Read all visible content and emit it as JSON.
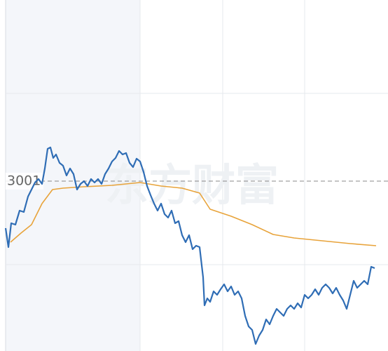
{
  "watermark": "东方财富",
  "chart_data": {
    "type": "line",
    "xlim": [
      0,
      554
    ],
    "ylim": [
      3026.8,
      2976.8
    ],
    "yticks": [
      3001
    ],
    "series": [
      {
        "color": "#2f6db5",
        "x": [
          8,
          12,
          16,
          22,
          28,
          34,
          40,
          45,
          50,
          55,
          60,
          64,
          68,
          72,
          76,
          80,
          85,
          90,
          95,
          100,
          105,
          110,
          115,
          120,
          125,
          130,
          135,
          140,
          145,
          150,
          155,
          160,
          165,
          170,
          175,
          180,
          185,
          190,
          195,
          200,
          205,
          210,
          215,
          220,
          225,
          230,
          235,
          240,
          245,
          250,
          255,
          260,
          265,
          270,
          275,
          280,
          285,
          290,
          292,
          296,
          300,
          305,
          310,
          315,
          320,
          325,
          330,
          335,
          340,
          345,
          350,
          355,
          360,
          365,
          370,
          375,
          380,
          385,
          390,
          395,
          400,
          405,
          410,
          415,
          420,
          425,
          430,
          435,
          440,
          445,
          450,
          455,
          460,
          465,
          470,
          475,
          480,
          485,
          490,
          495,
          500,
          505,
          510,
          515,
          520,
          525,
          530,
          535
        ],
        "values": [
          2994.3,
          2991.6,
          2995.0,
          2994.8,
          2996.8,
          2996.6,
          2998.8,
          2999.8,
          3000.8,
          3001.3,
          3000.6,
          3002.8,
          3005.6,
          3005.8,
          3004.3,
          3004.8,
          3003.6,
          3003.2,
          3001.8,
          3002.8,
          3002.0,
          2999.8,
          3000.6,
          3001.0,
          3000.3,
          3001.3,
          3000.8,
          3001.3,
          3000.6,
          3002.0,
          3002.8,
          3003.8,
          3004.3,
          3005.3,
          3004.8,
          3005.0,
          3003.6,
          3003.0,
          3004.2,
          3003.8,
          3002.3,
          3000.3,
          2999.0,
          2997.8,
          2996.8,
          2997.8,
          2996.3,
          2995.8,
          2996.8,
          2995.0,
          2995.3,
          2993.3,
          2992.3,
          2993.3,
          2991.3,
          2991.8,
          2991.6,
          2987.3,
          2983.3,
          2984.3,
          2983.8,
          2985.3,
          2984.8,
          2985.6,
          2986.3,
          2985.3,
          2986.0,
          2984.8,
          2985.3,
          2984.3,
          2981.8,
          2980.3,
          2979.8,
          2977.8,
          2979.0,
          2979.8,
          2981.3,
          2980.6,
          2981.8,
          2982.8,
          2982.3,
          2981.8,
          2982.8,
          2983.3,
          2982.8,
          2983.6,
          2983.0,
          2984.8,
          2984.3,
          2984.8,
          2985.6,
          2984.8,
          2985.8,
          2986.3,
          2985.8,
          2985.0,
          2985.8,
          2984.8,
          2984.0,
          2982.8,
          2984.8,
          2986.8,
          2985.8,
          2986.3,
          2986.8,
          2986.3,
          2988.8,
          2988.6
        ]
      },
      {
        "color": "#e8a33a",
        "x": [
          15,
          30,
          45,
          60,
          75,
          90,
          120,
          160,
          200,
          230,
          260,
          285,
          300,
          330,
          360,
          390,
          420,
          460,
          500,
          537
        ],
        "values": [
          2992.3,
          2993.6,
          2994.8,
          2997.8,
          2999.8,
          3000.0,
          3000.2,
          3000.4,
          3000.8,
          3000.3,
          3000.0,
          2999.3,
          2997.0,
          2996.0,
          2994.8,
          2993.4,
          2992.9,
          2992.5,
          2992.1,
          2991.8
        ]
      }
    ]
  }
}
